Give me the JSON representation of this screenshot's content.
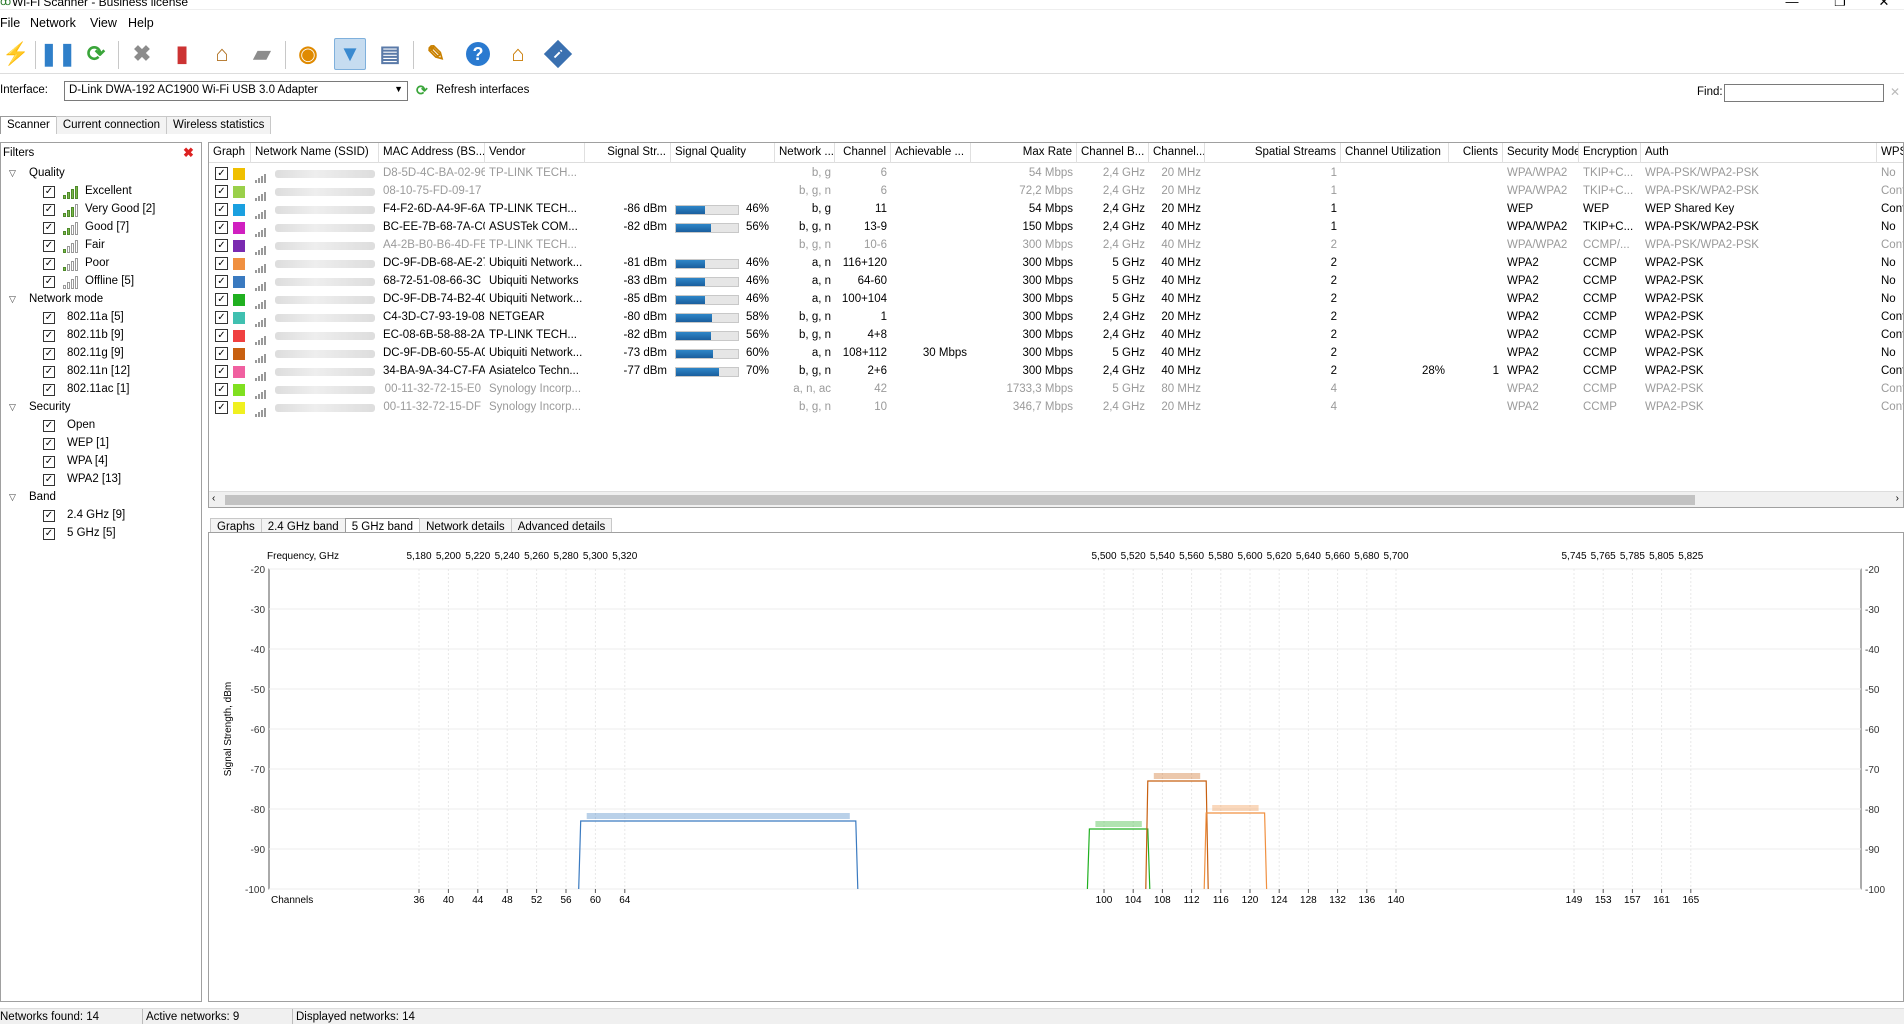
{
  "window": {
    "title": "Wi-Fi Scanner - Business license",
    "minimize": "—",
    "restore": "❐",
    "close": "✕"
  },
  "menu": [
    "File",
    "Network",
    "View",
    "Help"
  ],
  "toolbar": [
    {
      "name": "start-scan-icon",
      "glyph": "⚡",
      "color": "#9a9a9a"
    },
    {
      "name": "pause-icon",
      "glyph": "❚❚",
      "color": "#2f7fc9"
    },
    {
      "name": "refresh-icon",
      "glyph": "⟳",
      "color": "#3aa53a"
    },
    {
      "name": "delete-icon",
      "glyph": "✖",
      "color": "#8c8c8c"
    },
    {
      "name": "clear-inactive-icon",
      "glyph": "▮",
      "color": "#c33"
    },
    {
      "name": "broom-icon",
      "glyph": "⌂",
      "color": "#b07020"
    },
    {
      "name": "folder-icon",
      "glyph": "▰",
      "color": "#8c8c8c"
    },
    {
      "name": "rss-icon",
      "glyph": "◉",
      "color": "#e08a00"
    },
    {
      "name": "filter-icon",
      "glyph": "▼",
      "color": "#3a8ad0"
    },
    {
      "name": "notepad-icon",
      "glyph": "▤",
      "color": "#5a7aa8"
    },
    {
      "name": "wrench-icon",
      "glyph": "✎",
      "color": "#c98000"
    },
    {
      "name": "help-icon",
      "glyph": "?",
      "color": "#ffffff"
    },
    {
      "name": "home-icon",
      "glyph": "⌂",
      "color": "#c97a00"
    },
    {
      "name": "info-icon",
      "glyph": "i",
      "color": "#ffffff"
    }
  ],
  "interface": {
    "label": "Interface:",
    "value": "D-Link DWA-192 AC1900 Wi-Fi USB 3.0 Adapter",
    "refresh": "Refresh interfaces",
    "find_label": "Find:",
    "find_value": ""
  },
  "main_tabs": [
    "Scanner",
    "Current connection",
    "Wireless statistics"
  ],
  "filters": {
    "title": "Filters",
    "groups": [
      {
        "label": "Quality",
        "items": [
          {
            "label": "Excellent",
            "bars": 4
          },
          {
            "label": "Very Good [2]",
            "bars": 3
          },
          {
            "label": "Good [7]",
            "bars": 2
          },
          {
            "label": "Fair",
            "bars": 1
          },
          {
            "label": "Poor",
            "bars": 1
          },
          {
            "label": "Offline [5]",
            "bars": 0
          }
        ]
      },
      {
        "label": "Network mode",
        "items": [
          {
            "label": "802.11a [5]"
          },
          {
            "label": "802.11b [9]"
          },
          {
            "label": "802.11g [9]"
          },
          {
            "label": "802.11n [12]"
          },
          {
            "label": "802.11ac [1]"
          }
        ]
      },
      {
        "label": "Security",
        "items": [
          {
            "label": "Open"
          },
          {
            "label": "WEP [1]"
          },
          {
            "label": "WPA [4]"
          },
          {
            "label": "WPA2 [13]"
          }
        ]
      },
      {
        "label": "Band",
        "items": [
          {
            "label": "2.4 GHz [9]"
          },
          {
            "label": "5 GHz [5]"
          }
        ]
      }
    ]
  },
  "table": {
    "columns": [
      "Graph",
      "Network Name (SSID)",
      "MAC Address (BS...",
      "Vendor",
      "Signal Str...",
      "Signal Quality",
      "Network ...",
      "Channel",
      "Achievable ...",
      "Max Rate",
      "Channel B...",
      "Channel...",
      "Spatial Streams",
      "Channel Utilization",
      "Clients",
      "Security Mode",
      "Encryption",
      "Auth",
      "WPS s"
    ],
    "rows": [
      {
        "active": false,
        "color": "#f0c000",
        "mac": "D8-5D-4C-BA-02-96",
        "vendor": "TP-LINK TECH...",
        "signal": "",
        "quality": "",
        "qval": 0,
        "mode": "b, g",
        "channel": "6",
        "ach": "",
        "max": "54 Mbps",
        "band": "2,4 GHz",
        "width": "20 MHz",
        "ss": "1",
        "util": "",
        "clients": "",
        "sec": "WPA/WPA2",
        "enc": "TKIP+C...",
        "auth": "WPA-PSK/WPA2-PSK",
        "wps": "No"
      },
      {
        "active": false,
        "color": "#9ad04a",
        "mac": "08-10-75-FD-09-17",
        "vendor": "",
        "signal": "",
        "quality": "",
        "qval": 0,
        "mode": "b, g, n",
        "channel": "6",
        "ach": "",
        "max": "72,2 Mbps",
        "band": "2,4 GHz",
        "width": "20 MHz",
        "ss": "1",
        "util": "",
        "clients": "",
        "sec": "WPA/WPA2",
        "enc": "TKIP+C...",
        "auth": "WPA-PSK/WPA2-PSK",
        "wps": "Configu"
      },
      {
        "active": true,
        "color": "#1aa0e0",
        "mac": "F4-F2-6D-A4-9F-6A",
        "vendor": "TP-LINK TECH...",
        "signal": "-86 dBm",
        "quality": "46%",
        "qval": 0.46,
        "mode": "b, g",
        "channel": "11",
        "ach": "",
        "max": "54 Mbps",
        "band": "2,4 GHz",
        "width": "20 MHz",
        "ss": "1",
        "util": "",
        "clients": "",
        "sec": "WEP",
        "enc": "WEP",
        "auth": "WEP Shared Key",
        "wps": "Configu"
      },
      {
        "active": true,
        "color": "#d020c0",
        "mac": "BC-EE-7B-68-7A-C0",
        "vendor": "ASUSTek COM...",
        "signal": "-82 dBm",
        "quality": "56%",
        "qval": 0.56,
        "mode": "b, g, n",
        "channel": "13-9",
        "ach": "",
        "max": "150 Mbps",
        "band": "2,4 GHz",
        "width": "40 MHz",
        "ss": "1",
        "util": "",
        "clients": "",
        "sec": "WPA/WPA2",
        "enc": "TKIP+C...",
        "auth": "WPA-PSK/WPA2-PSK",
        "wps": "No"
      },
      {
        "active": false,
        "color": "#7a2ab0",
        "mac": "A4-2B-B0-B6-4D-FE",
        "vendor": "TP-LINK TECH...",
        "signal": "",
        "quality": "",
        "qval": 0,
        "mode": "b, g, n",
        "channel": "10-6",
        "ach": "",
        "max": "300 Mbps",
        "band": "2,4 GHz",
        "width": "40 MHz",
        "ss": "2",
        "util": "",
        "clients": "",
        "sec": "WPA/WPA2",
        "enc": "CCMP/...",
        "auth": "WPA-PSK/WPA2-PSK",
        "wps": "Configu"
      },
      {
        "active": true,
        "color": "#f09040",
        "mac": "DC-9F-DB-68-AE-27",
        "vendor": "Ubiquiti Network...",
        "signal": "-81 dBm",
        "quality": "46%",
        "qval": 0.46,
        "mode": "a, n",
        "channel": "116+120",
        "ach": "",
        "max": "300 Mbps",
        "band": "5 GHz",
        "width": "40 MHz",
        "ss": "2",
        "util": "",
        "clients": "",
        "sec": "WPA2",
        "enc": "CCMP",
        "auth": "WPA2-PSK",
        "wps": "No"
      },
      {
        "active": true,
        "color": "#3a7ac0",
        "mac": "68-72-51-08-66-3C",
        "vendor": "Ubiquiti Networks",
        "signal": "-83 dBm",
        "quality": "46%",
        "qval": 0.46,
        "mode": "a, n",
        "channel": "64-60",
        "ach": "",
        "max": "300 Mbps",
        "band": "5 GHz",
        "width": "40 MHz",
        "ss": "2",
        "util": "",
        "clients": "",
        "sec": "WPA2",
        "enc": "CCMP",
        "auth": "WPA2-PSK",
        "wps": "No"
      },
      {
        "active": true,
        "color": "#20b020",
        "mac": "DC-9F-DB-74-B2-40",
        "vendor": "Ubiquiti Network...",
        "signal": "-85 dBm",
        "quality": "46%",
        "qval": 0.46,
        "mode": "a, n",
        "channel": "100+104",
        "ach": "",
        "max": "300 Mbps",
        "band": "5 GHz",
        "width": "40 MHz",
        "ss": "2",
        "util": "",
        "clients": "",
        "sec": "WPA2",
        "enc": "CCMP",
        "auth": "WPA2-PSK",
        "wps": "No"
      },
      {
        "active": true,
        "color": "#40c0b0",
        "mac": "C4-3D-C7-93-19-08",
        "vendor": "NETGEAR",
        "signal": "-80 dBm",
        "quality": "58%",
        "qval": 0.58,
        "mode": "b, g, n",
        "channel": "1",
        "ach": "",
        "max": "300 Mbps",
        "band": "2,4 GHz",
        "width": "20 MHz",
        "ss": "2",
        "util": "",
        "clients": "",
        "sec": "WPA2",
        "enc": "CCMP",
        "auth": "WPA2-PSK",
        "wps": "Configu"
      },
      {
        "active": true,
        "color": "#f04040",
        "mac": "EC-08-6B-58-88-2A",
        "vendor": "TP-LINK TECH...",
        "signal": "-82 dBm",
        "quality": "56%",
        "qval": 0.56,
        "mode": "b, g, n",
        "channel": "4+8",
        "ach": "",
        "max": "300 Mbps",
        "band": "2,4 GHz",
        "width": "40 MHz",
        "ss": "2",
        "util": "",
        "clients": "",
        "sec": "WPA2",
        "enc": "CCMP",
        "auth": "WPA2-PSK",
        "wps": "Configu"
      },
      {
        "active": true,
        "color": "#c86010",
        "mac": "DC-9F-DB-60-55-A0",
        "vendor": "Ubiquiti Network...",
        "signal": "-73 dBm",
        "quality": "60%",
        "qval": 0.6,
        "mode": "a, n",
        "channel": "108+112",
        "ach": "30 Mbps",
        "max": "300 Mbps",
        "band": "5 GHz",
        "width": "40 MHz",
        "ss": "2",
        "util": "",
        "clients": "",
        "sec": "WPA2",
        "enc": "CCMP",
        "auth": "WPA2-PSK",
        "wps": "No"
      },
      {
        "active": true,
        "color": "#f060a0",
        "mac": "34-BA-9A-34-C7-FA",
        "vendor": "Asiatelco Techn...",
        "signal": "-77 dBm",
        "quality": "70%",
        "qval": 0.7,
        "mode": "b, g, n",
        "channel": "2+6",
        "ach": "",
        "max": "300 Mbps",
        "band": "2,4 GHz",
        "width": "40 MHz",
        "ss": "2",
        "util": "28%",
        "clients": "1",
        "sec": "WPA2",
        "enc": "CCMP",
        "auth": "WPA2-PSK",
        "wps": "Configu"
      },
      {
        "active": false,
        "color": "#80e020",
        "mac": "00-11-32-72-15-E0",
        "vendor": "Synology Incorp...",
        "signal": "",
        "quality": "",
        "qval": 0,
        "mode": "a, n, ac",
        "channel": "42",
        "ach": "",
        "max": "1733,3 Mbps",
        "band": "5 GHz",
        "width": "80 MHz",
        "ss": "4",
        "util": "",
        "clients": "",
        "sec": "WPA2",
        "enc": "CCMP",
        "auth": "WPA2-PSK",
        "wps": "Configu"
      },
      {
        "active": false,
        "color": "#f0f020",
        "mac": "00-11-32-72-15-DF",
        "vendor": "Synology Incorp...",
        "signal": "",
        "quality": "",
        "qval": 0,
        "mode": "b, g, n",
        "channel": "10",
        "ach": "",
        "max": "346,7 Mbps",
        "band": "2,4 GHz",
        "width": "20 MHz",
        "ss": "4",
        "util": "",
        "clients": "",
        "sec": "WPA2",
        "enc": "CCMP",
        "auth": "WPA2-PSK",
        "wps": "Configu"
      }
    ]
  },
  "lower_tabs": [
    "Graphs",
    "2.4 GHz band",
    "5 GHz band",
    "Network details",
    "Advanced details"
  ],
  "chart_data": {
    "type": "area",
    "title": "",
    "xlabel": "Channels",
    "ylabel": "Signal Strength, dBm",
    "top_axis_label": "Frequency, GHz",
    "frequencies": [
      "5,180",
      "5,200",
      "5,220",
      "5,240",
      "5,260",
      "5,280",
      "5,300",
      "5,320",
      "5,500",
      "5,520",
      "5,540",
      "5,560",
      "5,580",
      "5,600",
      "5,620",
      "5,640",
      "5,660",
      "5,680",
      "5,700",
      "5,745",
      "5,765",
      "5,785",
      "5,805",
      "5,825"
    ],
    "channels": [
      36,
      40,
      44,
      48,
      52,
      56,
      60,
      64,
      100,
      104,
      108,
      112,
      116,
      120,
      124,
      128,
      132,
      136,
      140,
      149,
      153,
      157,
      161,
      165
    ],
    "ylim": [
      -100,
      -20
    ],
    "yticks": [
      -20,
      -30,
      -40,
      -50,
      -60,
      -70,
      -80,
      -90,
      -100
    ],
    "series": [
      {
        "color": "#3a7ac0",
        "ch_from": 58,
        "ch_to": 66,
        "dbm": -83
      },
      {
        "color": "#20b020",
        "ch_from": 98,
        "ch_to": 106,
        "dbm": -85
      },
      {
        "color": "#c86010",
        "ch_from": 106,
        "ch_to": 114,
        "dbm": -73
      },
      {
        "color": "#f09040",
        "ch_from": 114,
        "ch_to": 122,
        "dbm": -81
      }
    ]
  },
  "status": {
    "found": "Networks found: 14",
    "active": "Active networks: 9",
    "displayed": "Displayed networks: 14"
  }
}
